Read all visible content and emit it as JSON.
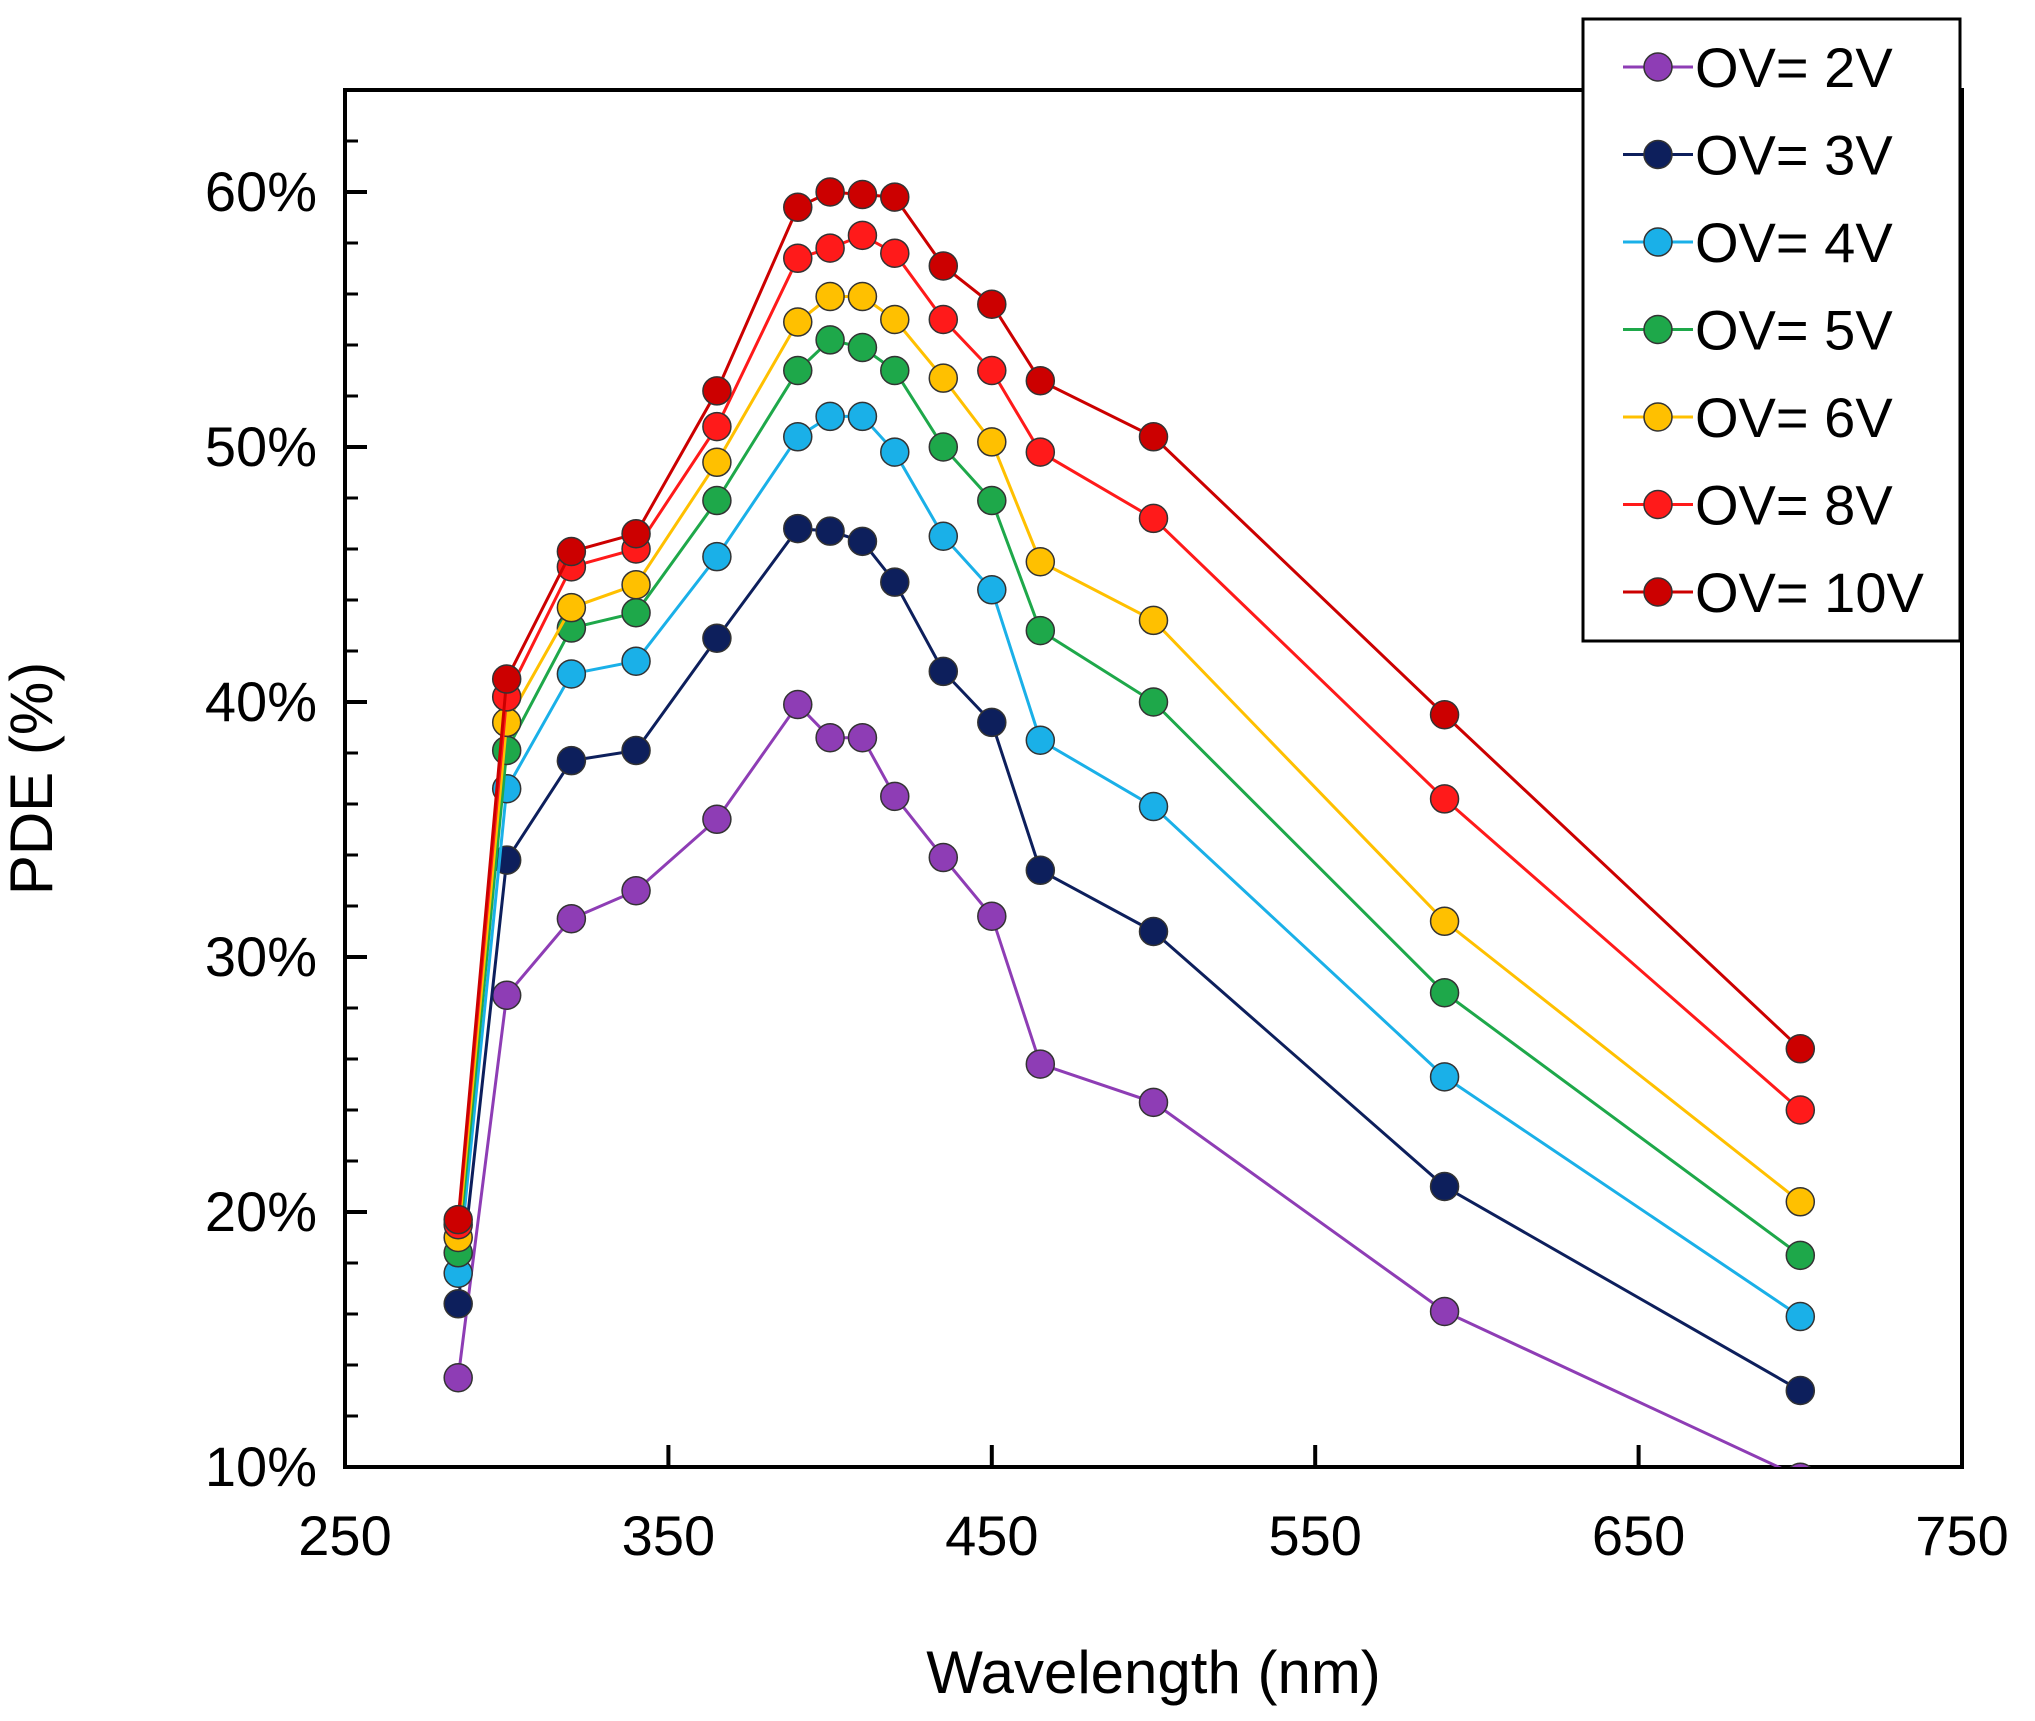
{
  "chart_data": {
    "type": "line",
    "title": "",
    "xlabel": "Wavelength (nm)",
    "ylabel": "PDE (%)",
    "xlim": [
      250,
      750
    ],
    "ylim": [
      10,
      64
    ],
    "x_ticks": [
      250,
      350,
      450,
      550,
      650,
      750
    ],
    "x_tick_labels": [
      "250",
      "350",
      "450",
      "550",
      "650",
      "750"
    ],
    "y_ticks": [
      10,
      20,
      30,
      40,
      50,
      60
    ],
    "y_tick_labels": [
      "10%",
      "20%",
      "30%",
      "40%",
      "50%",
      "60%"
    ],
    "legend_position": "top-right",
    "grid": false,
    "x": [
      285,
      300,
      320,
      340,
      365,
      390,
      400,
      410,
      420,
      435,
      450,
      465,
      500,
      590,
      700
    ],
    "series": [
      {
        "name": "OV= 2V",
        "color": "#8e3db5",
        "values": [
          13.5,
          28.5,
          31.5,
          32.6,
          35.4,
          39.9,
          38.6,
          38.6,
          36.3,
          33.9,
          31.6,
          25.8,
          24.3,
          16.1,
          9.6
        ]
      },
      {
        "name": "OV= 3V",
        "color": "#0d1f5c",
        "values": [
          16.4,
          33.8,
          37.7,
          38.1,
          42.5,
          46.8,
          46.7,
          46.3,
          44.7,
          41.2,
          39.2,
          33.4,
          31.0,
          21.0,
          13.0
        ]
      },
      {
        "name": "OV= 4V",
        "color": "#1ab0e8",
        "values": [
          17.6,
          36.6,
          41.1,
          41.6,
          45.7,
          50.4,
          51.2,
          51.2,
          49.8,
          46.5,
          44.4,
          38.5,
          35.9,
          25.3,
          15.9
        ]
      },
      {
        "name": "OV= 5V",
        "color": "#1ea84a",
        "values": [
          18.4,
          38.1,
          42.9,
          43.5,
          47.9,
          53.0,
          54.2,
          53.9,
          53.0,
          50.0,
          47.9,
          42.8,
          40.0,
          28.6,
          18.3
        ]
      },
      {
        "name": "OV= 6V",
        "color": "#ffc000",
        "values": [
          19.0,
          39.2,
          43.7,
          44.6,
          49.4,
          54.9,
          55.9,
          55.9,
          55.0,
          52.7,
          50.2,
          45.5,
          43.2,
          31.4,
          20.4
        ]
      },
      {
        "name": "OV= 8V",
        "color": "#ff1a1a",
        "values": [
          19.5,
          40.2,
          45.3,
          46.0,
          50.8,
          57.4,
          57.8,
          58.3,
          57.6,
          55.0,
          53.0,
          49.8,
          47.2,
          36.2,
          24.0
        ]
      },
      {
        "name": "OV= 10V",
        "color": "#cc0000",
        "values": [
          19.7,
          40.9,
          45.9,
          46.6,
          52.2,
          59.4,
          60.0,
          59.9,
          59.8,
          57.1,
          55.6,
          52.6,
          50.4,
          39.5,
          26.4
        ]
      }
    ]
  }
}
